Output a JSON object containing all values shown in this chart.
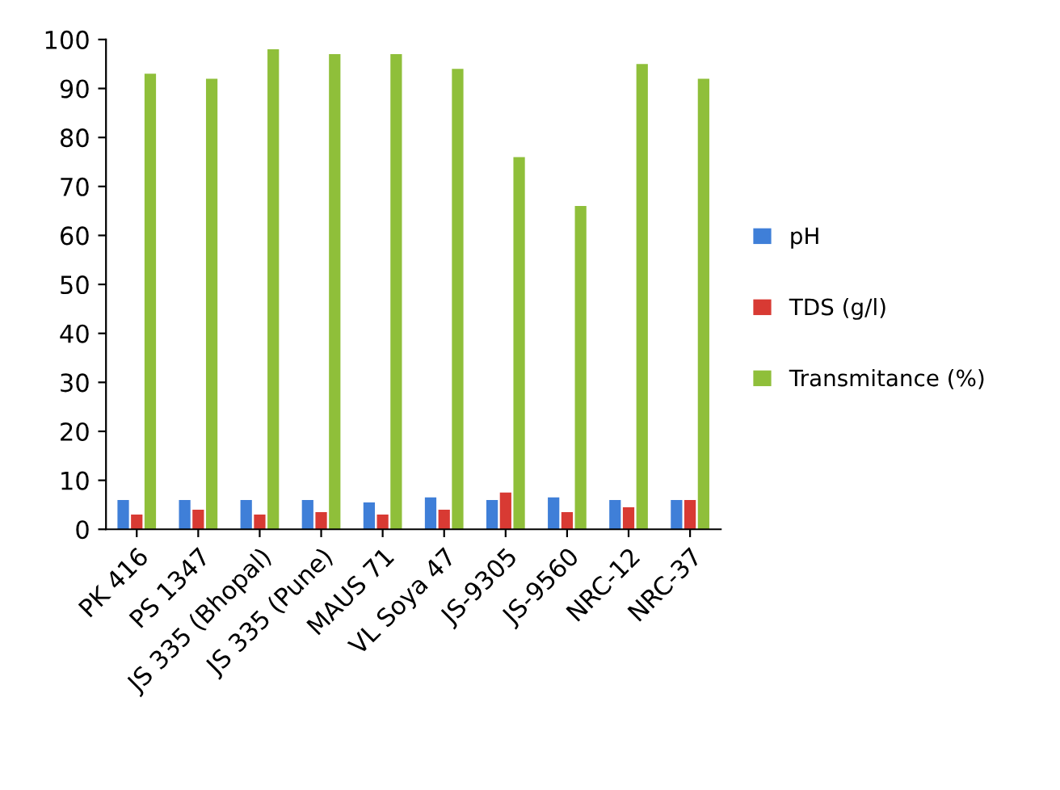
{
  "chart_data": {
    "type": "bar",
    "categories": [
      "PK 416",
      "PS 1347",
      "JS 335 (Bhopal)",
      "JS 335 (Pune)",
      "MAUS 71",
      "VL Soya 47",
      "JS-9305",
      "JS-9560",
      "NRC-12",
      "NRC-37"
    ],
    "series": [
      {
        "name": "pH",
        "color": "#3f7fd8",
        "values": [
          6,
          6,
          6,
          6,
          5.5,
          6.5,
          6,
          6.5,
          6,
          6
        ]
      },
      {
        "name": "TDS (g/l)",
        "color": "#d83a33",
        "values": [
          3,
          4,
          3,
          3.5,
          3,
          4,
          7.5,
          3.5,
          4.5,
          6
        ]
      },
      {
        "name": "Transmitance (%)",
        "color": "#8fbf3a",
        "values": [
          93,
          92,
          98,
          97,
          97,
          94,
          76,
          66,
          95,
          92
        ]
      }
    ],
    "ylim": [
      0,
      100
    ],
    "yticks": [
      0,
      10,
      20,
      30,
      40,
      50,
      60,
      70,
      80,
      90,
      100
    ],
    "grid": false,
    "legend": "right"
  }
}
